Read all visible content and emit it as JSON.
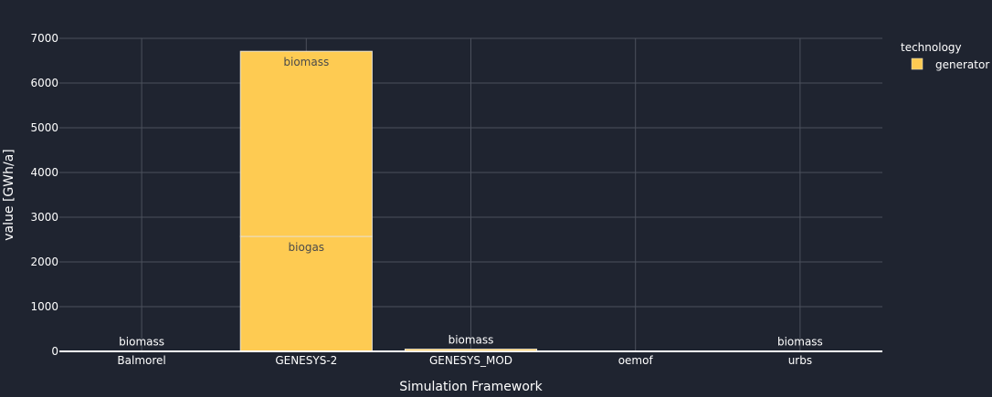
{
  "chart_data": {
    "type": "bar",
    "barmode": "stack",
    "xlabel": "Simulation Framework",
    "ylabel": "value [GWh/a]",
    "ylim": [
      0,
      7000
    ],
    "yticks": [
      0,
      1000,
      2000,
      3000,
      4000,
      5000,
      6000,
      7000
    ],
    "categories": [
      "Balmorel",
      "GENESYS-2",
      "GENESYS_MOD",
      "oemof",
      "urbs"
    ],
    "grid": true,
    "legend": {
      "title": "technology",
      "placement": "top-right",
      "entries": [
        {
          "name": "generator",
          "color": "#fecb52"
        }
      ]
    },
    "series": [
      {
        "technology": "generator",
        "color": "#fecb52",
        "segments": [
          {
            "category": "Balmorel",
            "label": "biomass",
            "value": 10
          },
          {
            "category": "GENESYS-2",
            "label": "biogas",
            "value": 2570
          },
          {
            "category": "GENESYS-2",
            "label": "biomass",
            "value": 4140
          },
          {
            "category": "GENESYS_MOD",
            "label": "biomass",
            "value": 50
          },
          {
            "category": "urbs",
            "label": "biomass",
            "value": 10
          }
        ]
      }
    ]
  },
  "colors": {
    "background": "#1f2430",
    "grid": "#4b505c",
    "zeroline": "#ffffff",
    "bar": "#fecb52",
    "bar_edge": "#e7e1d2"
  }
}
